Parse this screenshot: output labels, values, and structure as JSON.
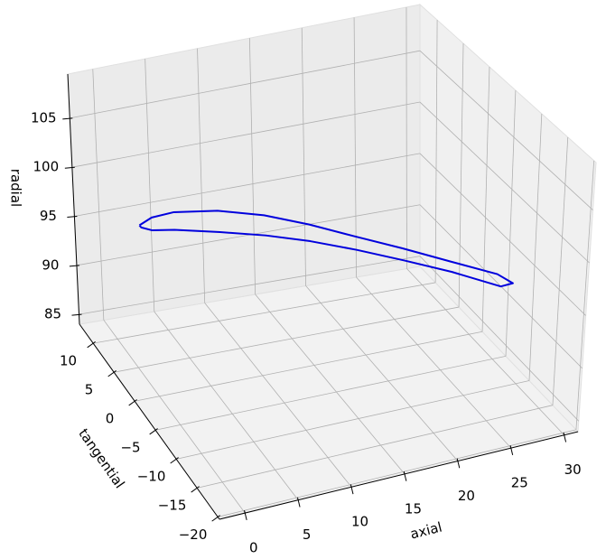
{
  "chart_data": {
    "type": "line3d",
    "xlabel": "axial",
    "ylabel": "tangential",
    "zlabel": "radial",
    "xlim": [
      -2.4,
      31.3
    ],
    "ylim": [
      -20.4,
      13.3
    ],
    "zlim": [
      84,
      109.5
    ],
    "xticks": [
      0,
      5,
      10,
      15,
      20,
      25,
      30
    ],
    "yticks": [
      {
        "value": -20,
        "label": "−20"
      },
      {
        "value": -15,
        "label": "−15"
      },
      {
        "value": -10,
        "label": "−10"
      },
      {
        "value": -5,
        "label": "−5"
      },
      0,
      5,
      10
    ],
    "zticks": [
      85,
      90,
      95,
      100,
      105
    ],
    "grid": true,
    "series": [
      {
        "color": "#0000dd",
        "x": [
          2.4,
          4.0,
          6.2,
          10.0,
          13.5,
          16.5,
          19.3,
          22.2,
          25.0,
          27.7,
          28.2,
          27.0,
          24.3,
          21.4,
          18.4,
          15.3,
          12.1,
          8.6,
          5.0,
          3.1,
          2.4,
          2.4
        ],
        "y": [
          9.9,
          10.8,
          11.0,
          9.9,
          7.7,
          4.7,
          1.2,
          -2.4,
          -6.3,
          -10.1,
          -12.2,
          -12.3,
          -8.1,
          -4.5,
          -1.1,
          1.9,
          4.3,
          6.3,
          8.1,
          8.7,
          9.5,
          9.9
        ],
        "z": [
          95,
          95,
          95,
          95,
          95,
          95,
          95,
          95,
          95,
          95,
          95,
          95,
          95,
          95,
          95,
          95,
          95,
          95,
          95,
          95,
          95,
          95
        ]
      }
    ]
  }
}
